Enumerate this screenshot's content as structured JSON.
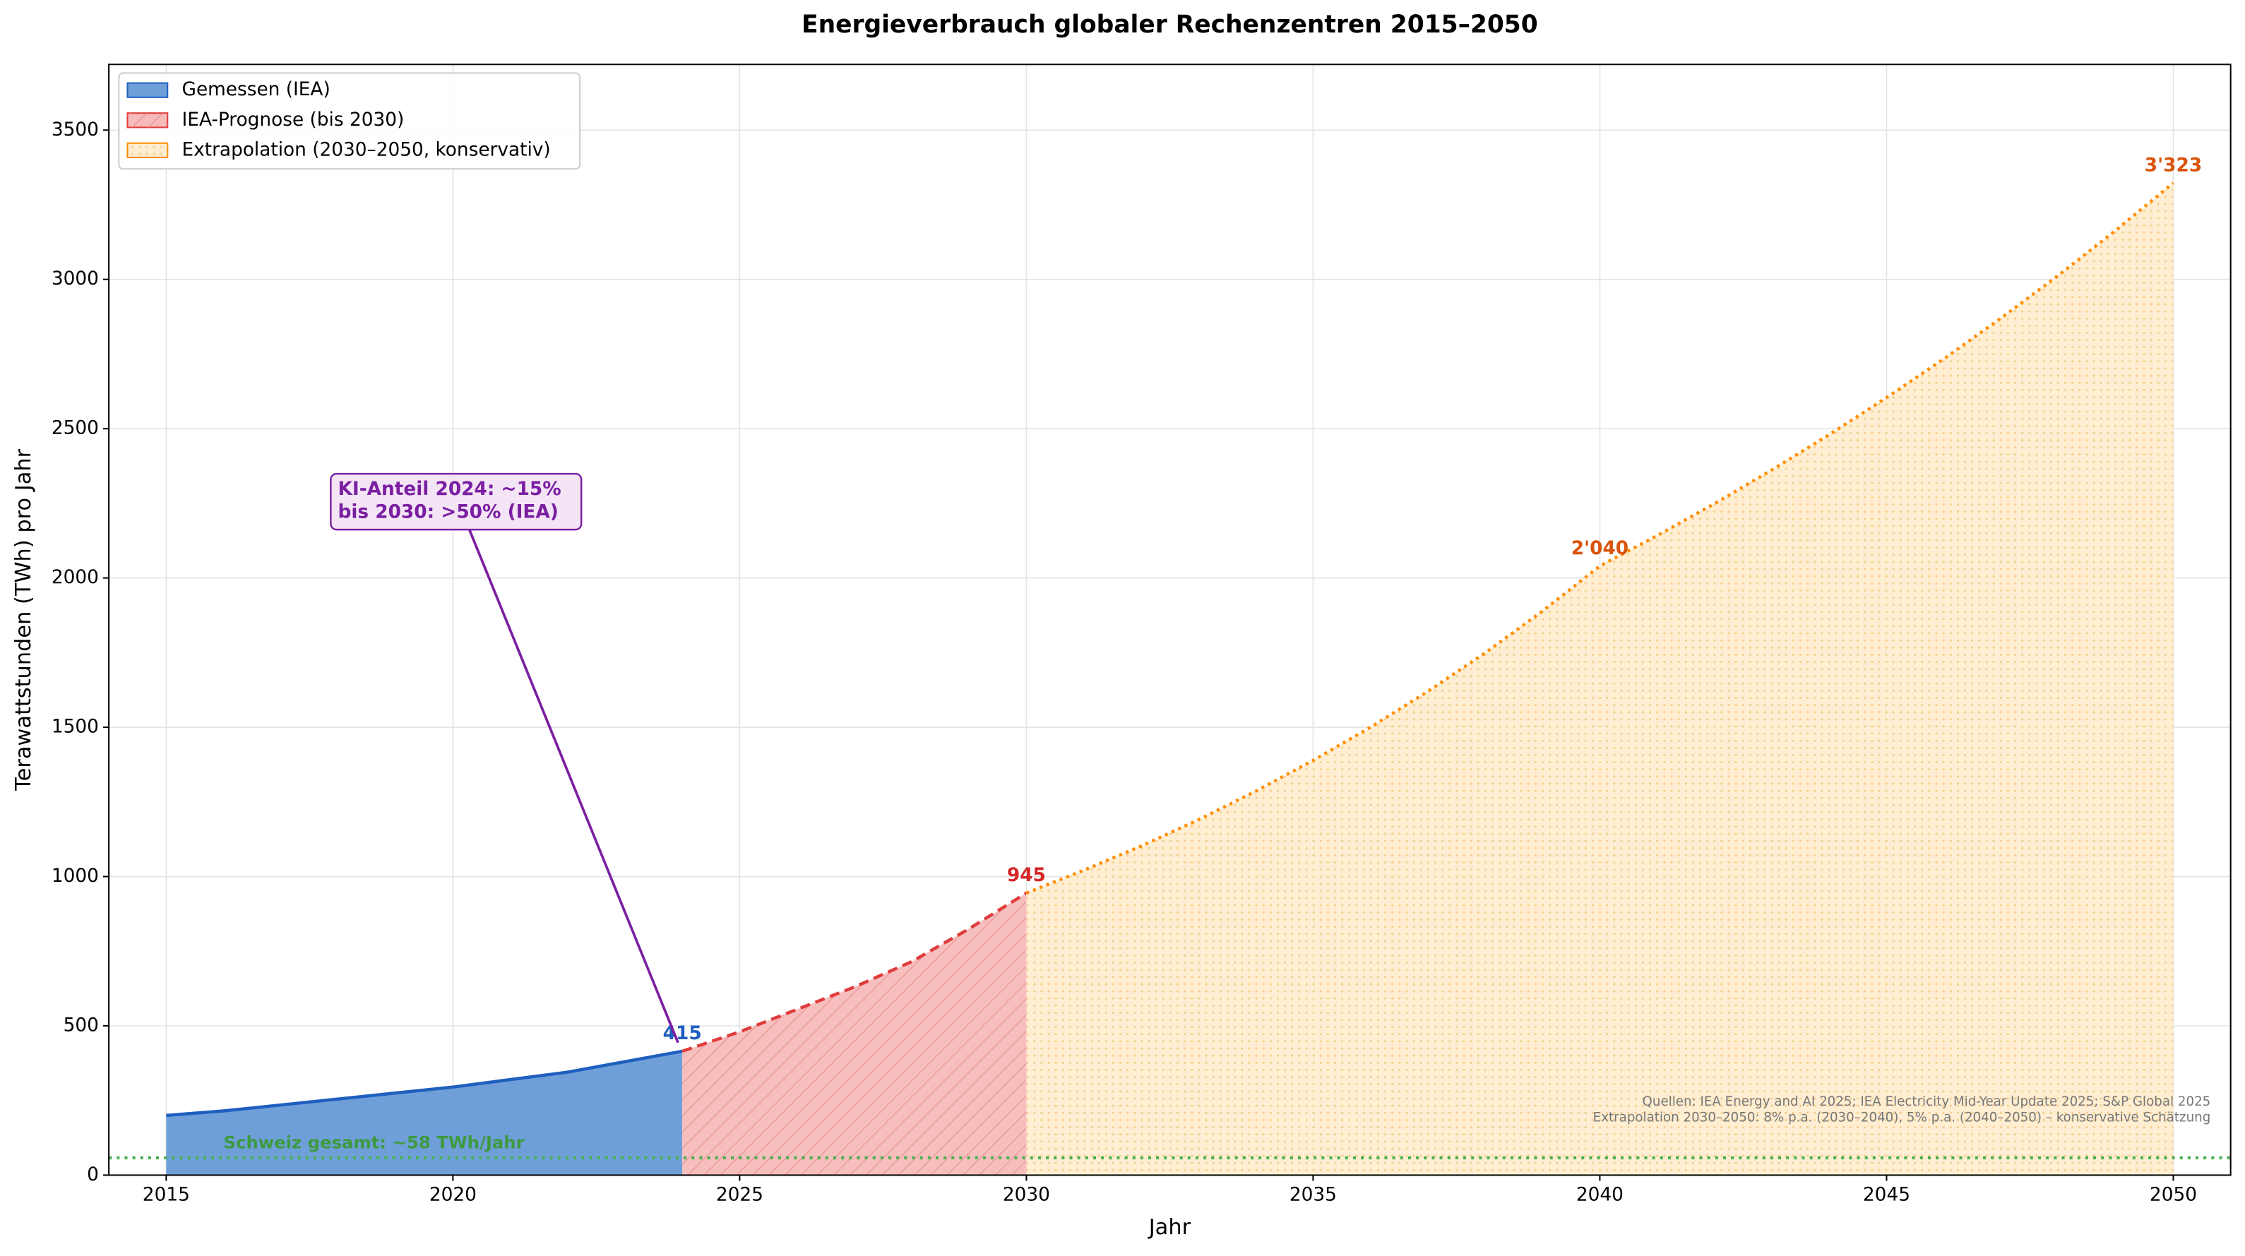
{
  "chart_data": {
    "type": "area",
    "title": "Energieverbrauch globaler Rechenzentren 2015–2050",
    "xlabel": "Jahr",
    "ylabel": "Terawattstunden (TWh) pro Jahr",
    "xlim": [
      2014,
      2051
    ],
    "ylim": [
      0,
      3720
    ],
    "xticks": [
      2015,
      2020,
      2025,
      2030,
      2035,
      2040,
      2045,
      2050
    ],
    "yticks": [
      0,
      500,
      1000,
      1500,
      2000,
      2500,
      3000,
      3500
    ],
    "grid": true,
    "legend": "upper left",
    "series": [
      {
        "name": "Gemessen (IEA)",
        "color": "#1f5fbf",
        "fill": "#6f9fd8",
        "style": "solid",
        "x": [
          2015,
          2016,
          2017,
          2018,
          2019,
          2020,
          2021,
          2022,
          2023,
          2024
        ],
        "values": [
          200,
          215,
          235,
          255,
          275,
          295,
          320,
          345,
          380,
          415
        ],
        "value_labels": [
          null,
          null,
          null,
          null,
          null,
          null,
          null,
          null,
          null,
          "415"
        ]
      },
      {
        "name": "IEA-Prognose (bis 2030)",
        "color": "#e03c3c",
        "fill": "#f7baba",
        "style": "dashed",
        "x": [
          2024,
          2025,
          2026,
          2027,
          2028,
          2029,
          2030
        ],
        "values": [
          415,
          480,
          555,
          630,
          715,
          825,
          945
        ],
        "value_labels": [
          null,
          null,
          null,
          null,
          null,
          null,
          "945"
        ]
      },
      {
        "name": "Extrapolation (2030–2050, konservativ)",
        "color": "#ff8c00",
        "fill": "#ffedd0",
        "style": "dotted",
        "x": [
          2030,
          2031,
          2032,
          2033,
          2034,
          2035,
          2036,
          2037,
          2038,
          2039,
          2040,
          2041,
          2042,
          2043,
          2044,
          2045,
          2046,
          2047,
          2048,
          2049,
          2050
        ],
        "values": [
          945,
          1021,
          1102,
          1190,
          1286,
          1389,
          1500,
          1620,
          1749,
          1889,
          2040,
          2142,
          2249,
          2362,
          2480,
          2604,
          2734,
          2871,
          3014,
          3165,
          3323
        ],
        "value_labels": [
          null,
          null,
          null,
          null,
          null,
          null,
          null,
          null,
          null,
          null,
          "2'040",
          null,
          null,
          null,
          null,
          null,
          null,
          null,
          null,
          null,
          "3'323"
        ]
      }
    ],
    "reference_line": {
      "value": 58,
      "label": "Schweiz gesamt: ~58 TWh/Jahr",
      "color": "#4caf50"
    },
    "annotation": [
      "KI-Anteil 2024: ~15%",
      "bis 2030: >50% (IEA)"
    ],
    "notes": [
      "Quellen: IEA Energy and AI 2025; IEA Electricity Mid-Year Update 2025; S&P Global 2025",
      "Extrapolation 2030–2050: 8% p.a. (2030–2040), 5% p.a. (2040–2050) – konservative Schätzung"
    ]
  }
}
